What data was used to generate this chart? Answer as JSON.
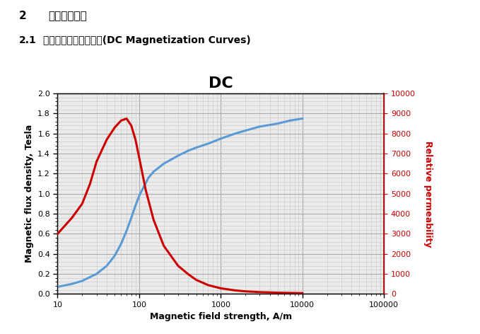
{
  "title": "DC",
  "xlabel": "Magnetic field strength, A/m",
  "ylabel_left": "Magnetic flux density, Tesla",
  "ylabel_right": "Relative permeability",
  "header1_num": "2",
  "header1_text": "電磁特性曲線",
  "header2_num": "2.1",
  "header2_text": "直流磁化及導磁率曲線(DC Magnetization Curves)",
  "blue_curve": {
    "H": [
      10,
      15,
      20,
      30,
      40,
      50,
      60,
      70,
      80,
      90,
      100,
      130,
      150,
      200,
      300,
      400,
      500,
      700,
      1000,
      1500,
      2000,
      3000,
      5000,
      7000,
      10000
    ],
    "B": [
      0.07,
      0.1,
      0.13,
      0.2,
      0.28,
      0.38,
      0.5,
      0.63,
      0.76,
      0.88,
      0.98,
      1.16,
      1.22,
      1.3,
      1.38,
      1.43,
      1.46,
      1.5,
      1.55,
      1.6,
      1.63,
      1.67,
      1.7,
      1.73,
      1.75
    ],
    "color": "#5B9BD5"
  },
  "red_curve": {
    "H": [
      10,
      15,
      20,
      25,
      30,
      40,
      50,
      60,
      70,
      80,
      90,
      100,
      120,
      150,
      200,
      300,
      400,
      500,
      700,
      1000,
      1500,
      2000,
      3000,
      5000,
      7000,
      10000
    ],
    "mu": [
      3000,
      3800,
      4500,
      5500,
      6600,
      7700,
      8300,
      8650,
      8750,
      8400,
      7700,
      6800,
      5200,
      3700,
      2400,
      1400,
      980,
      700,
      440,
      280,
      175,
      130,
      90,
      62,
      50,
      40
    ],
    "color": "#CC0000"
  },
  "xlim_log": [
    10,
    100000
  ],
  "ylim_left": [
    0.0,
    2.0
  ],
  "ylim_right": [
    0,
    10000
  ],
  "yticks_left": [
    0.0,
    0.2,
    0.4,
    0.6,
    0.8,
    1.0,
    1.2,
    1.4,
    1.6,
    1.8,
    2.0
  ],
  "yticks_right": [
    0,
    1000,
    2000,
    3000,
    4000,
    5000,
    6000,
    7000,
    8000,
    9000,
    10000
  ],
  "xticks_vals": [
    10,
    100,
    1000,
    10000,
    100000
  ],
  "xticks_labels": [
    "10",
    "100",
    "1000",
    "10000",
    "100000"
  ],
  "grid_major_color": "#AAAAAA",
  "grid_minor_color": "#CCCCCC",
  "bg_color": "#FFFFFF",
  "plot_bg_color": "#EBEBEB",
  "title_fontsize": 16,
  "axis_label_fontsize": 9,
  "tick_fontsize": 8,
  "header1_fontsize": 11,
  "header2_fontsize": 10
}
